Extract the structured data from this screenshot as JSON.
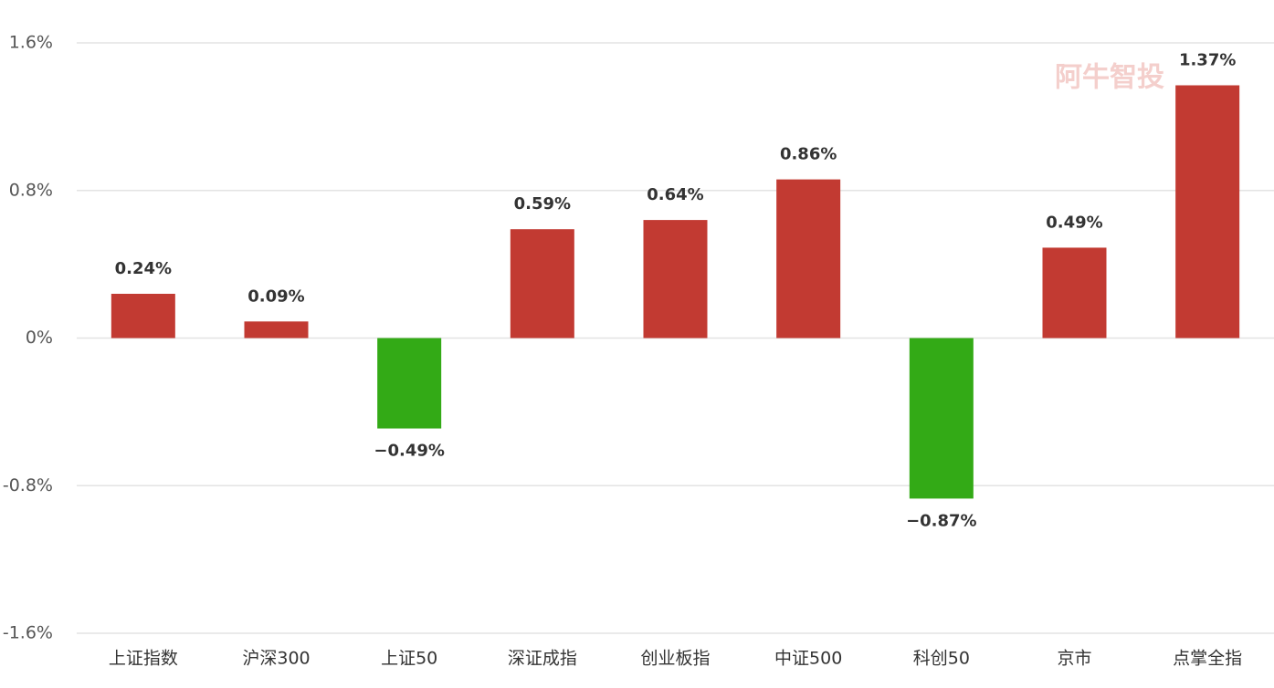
{
  "chart_data": {
    "type": "bar",
    "watermark": "阿牛智投",
    "categories": [
      "上证指数",
      "沪深300",
      "上证50",
      "深证成指",
      "创业板指",
      "中证500",
      "科创50",
      "京市",
      "点掌全指"
    ],
    "values": [
      0.24,
      0.09,
      -0.49,
      0.59,
      0.64,
      0.86,
      -0.87,
      0.49,
      1.37
    ],
    "value_labels": [
      "0.24%",
      "0.09%",
      "−0.49%",
      "0.59%",
      "0.64%",
      "0.86%",
      "−0.87%",
      "0.49%",
      "1.37%"
    ],
    "positive_color": "#c23a32",
    "negative_color": "#33aa16",
    "ylim": [
      -1.6,
      1.6
    ],
    "yticks": [
      {
        "value": -1.6,
        "label": "-1.6%"
      },
      {
        "value": -0.8,
        "label": "-0.8%"
      },
      {
        "value": 0,
        "label": "0%"
      },
      {
        "value": 0.8,
        "label": "0.8%"
      },
      {
        "value": 1.6,
        "label": "1.6%"
      }
    ],
    "grid": true
  }
}
